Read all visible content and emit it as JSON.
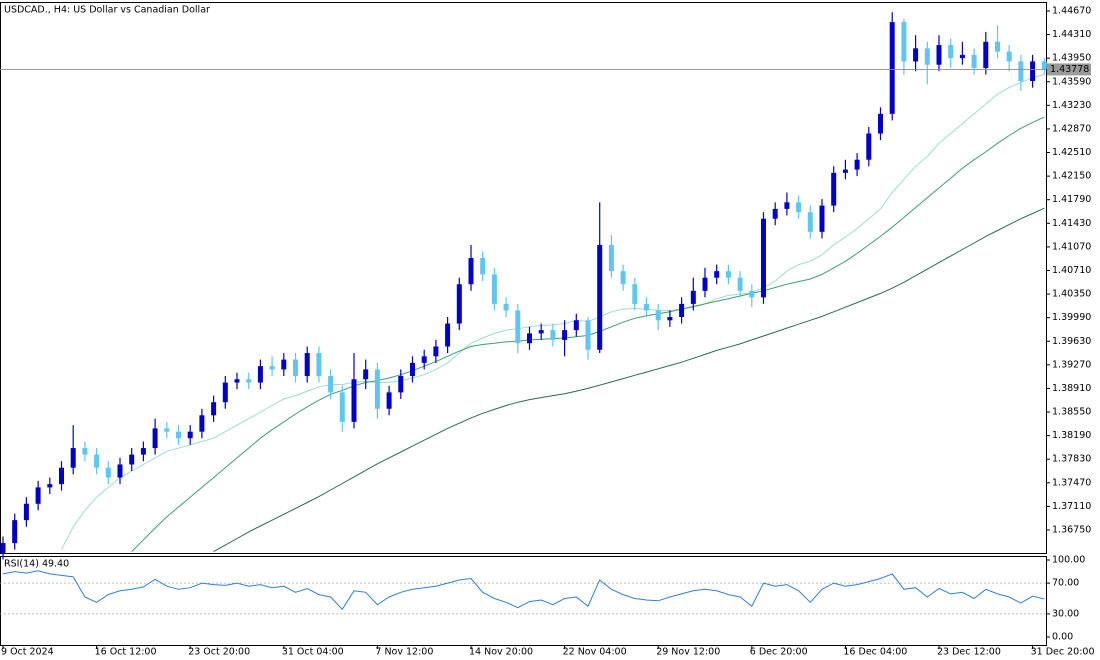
{
  "chart_data": [
    {
      "type": "candlestick",
      "title": "USDCAD., H4:  US Dollar vs Canadian Dollar",
      "categories": [
        "9 Oct 2024",
        null,
        null,
        null,
        null,
        null,
        null,
        null,
        "16 Oct 12:00",
        null,
        null,
        null,
        null,
        null,
        null,
        null,
        "23 Oct 20:00",
        null,
        null,
        null,
        null,
        null,
        null,
        null,
        "31 Oct 04:00",
        null,
        null,
        null,
        null,
        null,
        null,
        null,
        "7 Nov 12:00",
        null,
        null,
        null,
        null,
        null,
        null,
        null,
        "14 Nov 20:00",
        null,
        null,
        null,
        null,
        null,
        null,
        null,
        "22 Nov 04:00",
        null,
        null,
        null,
        null,
        null,
        null,
        null,
        "29 Nov 12:00",
        null,
        null,
        null,
        null,
        null,
        null,
        null,
        "6 Dec 20:00",
        null,
        null,
        null,
        null,
        null,
        null,
        null,
        "16 Dec 04:00",
        null,
        null,
        null,
        null,
        null,
        null,
        null,
        "23 Dec 12:00",
        null,
        null,
        null,
        null,
        null,
        null,
        null,
        "31 Dec 20:00",
        null
      ],
      "open": [
        1.364,
        1.3655,
        1.369,
        1.3715,
        1.374,
        1.3745,
        1.377,
        1.38,
        1.379,
        1.377,
        1.3755,
        1.3775,
        1.379,
        1.38,
        1.383,
        1.3825,
        1.3815,
        1.3825,
        1.385,
        1.387,
        1.39,
        1.3905,
        1.39,
        1.3925,
        1.392,
        1.3935,
        1.391,
        1.3945,
        1.391,
        1.3885,
        1.384,
        1.3905,
        1.392,
        1.386,
        1.3885,
        1.391,
        1.393,
        1.394,
        1.3955,
        1.399,
        1.405,
        1.409,
        1.4065,
        1.402,
        1.401,
        1.396,
        1.3975,
        1.398,
        1.3965,
        1.398,
        1.3995,
        1.395,
        1.411,
        1.407,
        1.405,
        1.402,
        1.401,
        1.3995,
        1.4,
        1.402,
        1.404,
        1.406,
        1.407,
        1.406,
        1.404,
        1.403,
        1.415,
        1.4165,
        1.4175,
        1.416,
        1.413,
        1.417,
        1.422,
        1.4225,
        1.424,
        1.428,
        1.431,
        1.445,
        1.439,
        1.441,
        1.4385,
        1.4415,
        1.4395,
        1.44,
        1.438,
        1.442,
        1.4405,
        1.439,
        1.436,
        1.439
      ],
      "high": [
        1.3665,
        1.37,
        1.3725,
        1.375,
        1.3755,
        1.378,
        1.3835,
        1.381,
        1.38,
        1.378,
        1.3785,
        1.38,
        1.381,
        1.3845,
        1.384,
        1.3835,
        1.3835,
        1.386,
        1.388,
        1.391,
        1.3915,
        1.3915,
        1.3935,
        1.394,
        1.3945,
        1.3945,
        1.3955,
        1.3955,
        1.392,
        1.3895,
        1.3945,
        1.3935,
        1.393,
        1.3895,
        1.392,
        1.394,
        1.395,
        1.3965,
        1.4,
        1.406,
        1.411,
        1.41,
        1.4075,
        1.403,
        1.402,
        1.3985,
        1.399,
        1.399,
        1.3995,
        1.4005,
        1.4,
        1.4175,
        1.4125,
        1.408,
        1.406,
        1.403,
        1.402,
        1.401,
        1.403,
        1.406,
        1.4075,
        1.408,
        1.408,
        1.407,
        1.405,
        1.416,
        1.4175,
        1.419,
        1.4185,
        1.417,
        1.418,
        1.423,
        1.424,
        1.425,
        1.429,
        1.432,
        1.4465,
        1.4455,
        1.443,
        1.442,
        1.443,
        1.4425,
        1.442,
        1.441,
        1.4435,
        1.4445,
        1.4415,
        1.44,
        1.44,
        1.4395
      ],
      "low": [
        1.363,
        1.3645,
        1.368,
        1.3705,
        1.373,
        1.3735,
        1.376,
        1.378,
        1.376,
        1.3745,
        1.3745,
        1.3765,
        1.378,
        1.379,
        1.3815,
        1.3805,
        1.3805,
        1.3815,
        1.384,
        1.386,
        1.389,
        1.389,
        1.389,
        1.391,
        1.391,
        1.39,
        1.39,
        1.39,
        1.3875,
        1.3825,
        1.383,
        1.389,
        1.3845,
        1.385,
        1.3875,
        1.39,
        1.392,
        1.393,
        1.3945,
        1.398,
        1.404,
        1.4055,
        1.401,
        1.4,
        1.3945,
        1.395,
        1.3965,
        1.3955,
        1.394,
        1.397,
        1.3935,
        1.3945,
        1.406,
        1.404,
        1.401,
        1.4,
        1.398,
        1.3985,
        1.399,
        1.401,
        1.403,
        1.405,
        1.405,
        1.403,
        1.4015,
        1.402,
        1.414,
        1.4155,
        1.415,
        1.412,
        1.412,
        1.416,
        1.421,
        1.4215,
        1.423,
        1.427,
        1.43,
        1.437,
        1.4375,
        1.4355,
        1.4375,
        1.438,
        1.4385,
        1.437,
        1.437,
        1.4395,
        1.4375,
        1.4345,
        1.435,
        1.437
      ],
      "close": [
        1.3655,
        1.369,
        1.3715,
        1.374,
        1.3745,
        1.377,
        1.38,
        1.379,
        1.377,
        1.3755,
        1.3775,
        1.379,
        1.38,
        1.383,
        1.3825,
        1.3815,
        1.3825,
        1.385,
        1.387,
        1.39,
        1.3905,
        1.39,
        1.3925,
        1.392,
        1.3935,
        1.391,
        1.3945,
        1.391,
        1.3885,
        1.384,
        1.3905,
        1.392,
        1.386,
        1.3885,
        1.391,
        1.393,
        1.394,
        1.3955,
        1.399,
        1.405,
        1.409,
        1.4065,
        1.402,
        1.401,
        1.396,
        1.3975,
        1.398,
        1.3965,
        1.398,
        1.3995,
        1.395,
        1.411,
        1.407,
        1.405,
        1.402,
        1.401,
        1.3995,
        1.4,
        1.402,
        1.404,
        1.406,
        1.407,
        1.406,
        1.404,
        1.403,
        1.415,
        1.4165,
        1.4175,
        1.416,
        1.413,
        1.417,
        1.422,
        1.4225,
        1.424,
        1.428,
        1.431,
        1.445,
        1.439,
        1.441,
        1.4385,
        1.4415,
        1.4395,
        1.44,
        1.438,
        1.442,
        1.4405,
        1.439,
        1.436,
        1.439,
        1.43778
      ],
      "up_color": "#0000cd",
      "down_color": "#5ec6f2",
      "series": [
        {
          "color": "#9fdccb",
          "values": [
            null,
            null,
            null,
            null,
            null,
            1.3645,
            1.368,
            1.3705,
            1.3725,
            1.374,
            1.3755,
            1.3765,
            1.3775,
            1.3785,
            1.3795,
            1.38,
            1.3805,
            1.381,
            1.3815,
            1.3825,
            1.3835,
            1.3845,
            1.3855,
            1.3865,
            1.3875,
            1.388,
            1.3887,
            1.3893,
            1.3897,
            1.3897,
            1.39,
            1.3902,
            1.39,
            1.39,
            1.3903,
            1.3907,
            1.3912,
            1.392,
            1.393,
            1.3945,
            1.396,
            1.3968,
            1.3975,
            1.398,
            1.3982,
            1.3985,
            1.3987,
            1.3988,
            1.399,
            1.3995,
            1.3993,
            1.4,
            1.4008,
            1.4012,
            1.4013,
            1.4012,
            1.401,
            1.401,
            1.4012,
            1.4015,
            1.402,
            1.4028,
            1.4033,
            1.4035,
            1.4037,
            1.4045,
            1.4055,
            1.407,
            1.408,
            1.4085,
            1.4095,
            1.411,
            1.4122,
            1.4135,
            1.415,
            1.4165,
            1.419,
            1.421,
            1.423,
            1.4245,
            1.4265,
            1.428,
            1.4295,
            1.431,
            1.4325,
            1.434,
            1.435,
            1.4358,
            1.4365,
            1.437
          ]
        },
        {
          "color": "#3f9d70",
          "values": [
            null,
            null,
            null,
            null,
            null,
            null,
            null,
            null,
            null,
            null,
            null,
            1.3642,
            1.366,
            1.3678,
            1.3695,
            1.371,
            1.3725,
            1.374,
            1.3755,
            1.377,
            1.3785,
            1.38,
            1.3815,
            1.3828,
            1.384,
            1.3852,
            1.3863,
            1.3873,
            1.3882,
            1.3888,
            1.3895,
            1.39,
            1.3903,
            1.3907,
            1.3912,
            1.3918,
            1.3925,
            1.3932,
            1.394,
            1.3948,
            1.3955,
            1.3958,
            1.396,
            1.3962,
            1.3963,
            1.3965,
            1.3966,
            1.3967,
            1.3968,
            1.397,
            1.3972,
            1.3978,
            1.3985,
            1.3992,
            1.3998,
            1.4002,
            1.4005,
            1.4008,
            1.4012,
            1.4016,
            1.402,
            1.4024,
            1.4028,
            1.4032,
            1.4036,
            1.404,
            1.4045,
            1.405,
            1.4054,
            1.4058,
            1.4065,
            1.4075,
            1.4085,
            1.4097,
            1.411,
            1.4123,
            1.4137,
            1.4152,
            1.4167,
            1.4182,
            1.4197,
            1.4212,
            1.4227,
            1.424,
            1.4252,
            1.4265,
            1.4277,
            1.4288,
            1.4297,
            1.4305
          ]
        },
        {
          "color": "#2d6a4d",
          "values": [
            null,
            null,
            null,
            null,
            null,
            null,
            null,
            null,
            null,
            null,
            null,
            null,
            null,
            null,
            null,
            null,
            null,
            null,
            1.3642,
            1.3652,
            1.3662,
            1.3672,
            1.3681,
            1.369,
            1.3699,
            1.3708,
            1.3717,
            1.3726,
            1.3736,
            1.3746,
            1.3756,
            1.3766,
            1.3776,
            1.3785,
            1.3794,
            1.3803,
            1.3812,
            1.3821,
            1.383,
            1.3838,
            1.3846,
            1.3853,
            1.3859,
            1.3865,
            1.387,
            1.3874,
            1.3877,
            1.388,
            1.3883,
            1.3887,
            1.3891,
            1.3896,
            1.3901,
            1.3906,
            1.3911,
            1.3916,
            1.3921,
            1.3926,
            1.3931,
            1.3937,
            1.3943,
            1.3949,
            1.3954,
            1.3959,
            1.3965,
            1.3971,
            1.3977,
            1.3983,
            1.3989,
            1.3995,
            1.4001,
            1.4008,
            1.4015,
            1.4022,
            1.4029,
            1.4036,
            1.4044,
            1.4053,
            1.4063,
            1.4073,
            1.4083,
            1.4093,
            1.4103,
            1.4113,
            1.4123,
            1.4132,
            1.4141,
            1.415,
            1.4158,
            1.4166
          ]
        }
      ],
      "current_price": 1.43778,
      "ylim": [
        1.36414,
        1.44807
      ],
      "yticks": [
        {
          "value": 1.3675,
          "label": "1.36750"
        },
        {
          "value": 1.3711,
          "label": "1.37110"
        },
        {
          "value": 1.3747,
          "label": "1.37470"
        },
        {
          "value": 1.3783,
          "label": "1.37830"
        },
        {
          "value": 1.3819,
          "label": "1.38190"
        },
        {
          "value": 1.3855,
          "label": "1.38550"
        },
        {
          "value": 1.3891,
          "label": "1.38910"
        },
        {
          "value": 1.3927,
          "label": "1.39270"
        },
        {
          "value": 1.3963,
          "label": "1.39630"
        },
        {
          "value": 1.3999,
          "label": "1.39990"
        },
        {
          "value": 1.4035,
          "label": "1.40350"
        },
        {
          "value": 1.4071,
          "label": "1.40710"
        },
        {
          "value": 1.4107,
          "label": "1.41070"
        },
        {
          "value": 1.4143,
          "label": "1.41430"
        },
        {
          "value": 1.4179,
          "label": "1.41790"
        },
        {
          "value": 1.4215,
          "label": "1.42150"
        },
        {
          "value": 1.4251,
          "label": "1.42510"
        },
        {
          "value": 1.4287,
          "label": "1.42870"
        },
        {
          "value": 1.4323,
          "label": "1.43230"
        },
        {
          "value": 1.4359,
          "label": "1.43590"
        },
        {
          "value": 1.4395,
          "label": "1.43950"
        },
        {
          "value": 1.4431,
          "label": "1.44310"
        },
        {
          "value": 1.4467,
          "label": "1.44670"
        }
      ]
    },
    {
      "type": "line",
      "title": "RSI(14) 49.40",
      "color": "#2f7fd6",
      "values": [
        82,
        85,
        83,
        86,
        82,
        80,
        78,
        52,
        45,
        55,
        60,
        62,
        65,
        75,
        66,
        62,
        64,
        70,
        68,
        67,
        70,
        66,
        68,
        64,
        66,
        58,
        63,
        55,
        52,
        36,
        60,
        58,
        42,
        52,
        58,
        62,
        64,
        66,
        70,
        74,
        76,
        58,
        50,
        45,
        38,
        46,
        48,
        42,
        50,
        52,
        40,
        74,
        62,
        55,
        50,
        48,
        47,
        52,
        56,
        60,
        62,
        60,
        55,
        52,
        40,
        70,
        66,
        68,
        60,
        45,
        62,
        70,
        66,
        68,
        72,
        76,
        82,
        62,
        64,
        52,
        63,
        56,
        58,
        50,
        62,
        56,
        52,
        44,
        53,
        49.4
      ],
      "levels": [
        70,
        30
      ],
      "ylim": [
        -10.4,
        105.2
      ],
      "yticks": [
        {
          "value": 0,
          "label": "0.00"
        },
        {
          "value": 30,
          "label": "30.00"
        },
        {
          "value": 70,
          "label": "70.00"
        },
        {
          "value": 100,
          "label": "100.00"
        }
      ]
    }
  ]
}
